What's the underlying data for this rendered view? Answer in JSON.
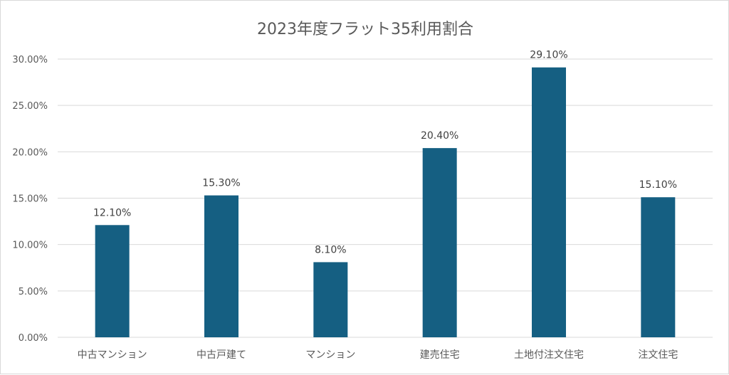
{
  "chart_data": {
    "type": "bar",
    "title": "2023年度フラット35利用割合",
    "xlabel": "",
    "ylabel": "",
    "categories": [
      "中古マンション",
      "中古戸建て",
      "マンション",
      "建売住宅",
      "土地付注文住宅",
      "注文住宅"
    ],
    "values": [
      12.1,
      15.3,
      8.1,
      20.4,
      29.1,
      15.1
    ],
    "data_labels": [
      "12.10%",
      "15.30%",
      "8.10%",
      "20.40%",
      "29.10%",
      "15.10%"
    ],
    "ylim": [
      0,
      30
    ],
    "yticks": [
      0,
      5,
      10,
      15,
      20,
      25,
      30
    ],
    "ytick_labels": [
      "0.00%",
      "5.00%",
      "10.00%",
      "15.00%",
      "20.00%",
      "25.00%",
      "30.00%"
    ],
    "grid": true,
    "legend": "none",
    "bar_color": "#155f82"
  }
}
